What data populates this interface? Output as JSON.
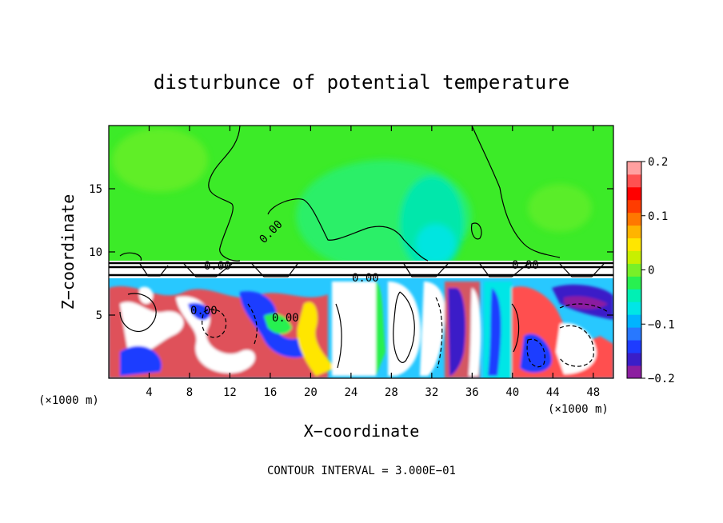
{
  "chart_data": {
    "type": "heatmap",
    "title": "disturbunce of potential temperature",
    "xlabel": "X−coordinate",
    "ylabel": "Z−coordinate",
    "x_unit_left": "(×1000 m)",
    "x_unit_right": "(×1000 m)",
    "xlim": [
      0,
      50
    ],
    "ylim": [
      0,
      20
    ],
    "x_ticks": [
      4,
      8,
      12,
      16,
      20,
      24,
      28,
      32,
      36,
      40,
      44,
      48
    ],
    "x_tick_labels": [
      "4",
      "8",
      "12",
      "16",
      "20",
      "24",
      "28",
      "32",
      "36",
      "40",
      "44",
      "48"
    ],
    "y_ticks": [
      5,
      10,
      15
    ],
    "y_tick_labels": [
      "5",
      "10",
      "15"
    ],
    "colorbar": {
      "range": [
        -0.2,
        0.2
      ],
      "ticks": [
        0.2,
        0.1,
        0,
        -0.1,
        -0.2
      ],
      "tick_labels": [
        "0.2",
        "0.1",
        "0",
        "−0.1",
        "−0.2"
      ],
      "colors": [
        "#8c1ea0",
        "#3a1ec8",
        "#1e3cff",
        "#2878ff",
        "#00b4ff",
        "#00e6e6",
        "#00f0b4",
        "#28f050",
        "#78f028",
        "#c8f000",
        "#ffe600",
        "#ffb400",
        "#ff7800",
        "#ff3c00",
        "#ff0000",
        "#ff5050",
        "#ffa0a0"
      ]
    },
    "contour_labels": [
      "0.00",
      "0.00",
      "0.00",
      "0.00",
      "0.00",
      "0.00"
    ],
    "footer": "CONTOUR INTERVAL = 3.000E−01"
  }
}
